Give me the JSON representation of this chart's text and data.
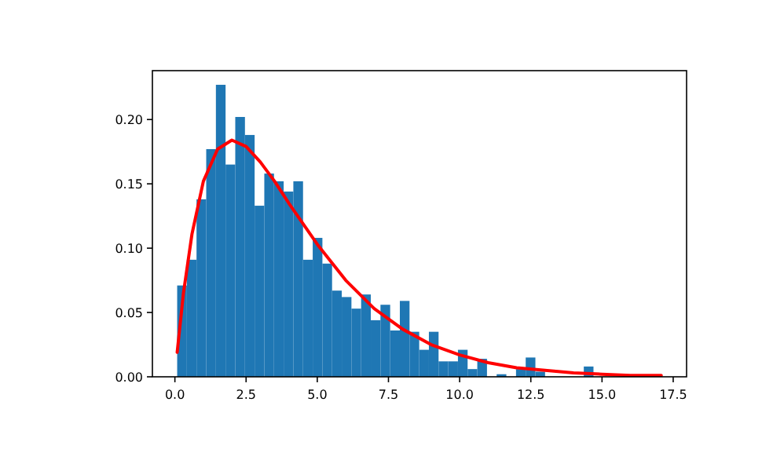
{
  "chart_data": {
    "type": "histogram",
    "bins": [
      0.08,
      0.42,
      0.76,
      1.1,
      1.44,
      1.78,
      2.12,
      2.46,
      2.8,
      3.14,
      3.48,
      3.82,
      4.16,
      4.5,
      4.84,
      5.18,
      5.52,
      5.86,
      6.2,
      6.54,
      6.88,
      7.22,
      7.56,
      7.9,
      8.24,
      8.58,
      8.92,
      9.26,
      9.6,
      9.94,
      10.28,
      10.62,
      10.96,
      11.3,
      11.64,
      11.98,
      12.32,
      12.66,
      13.0,
      13.34,
      13.68,
      14.02,
      14.36,
      14.7,
      15.04,
      15.38,
      15.72,
      16.06,
      16.4,
      16.74,
      17.08
    ],
    "values": [
      0.071,
      0.091,
      0.138,
      0.177,
      0.227,
      0.165,
      0.202,
      0.188,
      0.133,
      0.158,
      0.152,
      0.144,
      0.152,
      0.091,
      0.108,
      0.088,
      0.067,
      0.062,
      0.053,
      0.064,
      0.044,
      0.056,
      0.036,
      0.059,
      0.035,
      0.021,
      0.035,
      0.012,
      0.012,
      0.021,
      0.006,
      0.014,
      0,
      0.002,
      0,
      0.006,
      0.015,
      0.004,
      null,
      null,
      0,
      null,
      0.008,
      null,
      null,
      0,
      0,
      0,
      0,
      null
    ],
    "color": "#1f77b4",
    "series": [
      {
        "type": "line",
        "color": "#ff0000",
        "x": [
          0.08,
          0.3,
          0.6,
          1,
          1.5,
          2,
          2.5,
          3,
          3.5,
          4,
          5,
          6,
          7,
          8,
          9,
          10,
          11,
          12,
          13,
          14,
          15,
          16,
          17.08
        ],
        "values": [
          0.019,
          0.065,
          0.111,
          0.152,
          0.177,
          0.184,
          0.179,
          0.167,
          0.152,
          0.135,
          0.103,
          0.075,
          0.053,
          0.037,
          0.025,
          0.017,
          0.011,
          0.007,
          0.005,
          0.003,
          0.002,
          0.001,
          0.001
        ]
      }
    ],
    "xlim": [
      -0.79,
      17.97
    ],
    "xticks": [
      {
        "value": 0,
        "label": "0.0"
      },
      {
        "value": 2.5,
        "label": "2.5"
      },
      {
        "value": 5,
        "label": "5.0"
      },
      {
        "value": 7.5,
        "label": "7.5"
      },
      {
        "value": 10,
        "label": "10.0"
      },
      {
        "value": 12.5,
        "label": "12.5"
      },
      {
        "value": 15,
        "label": "15.0"
      },
      {
        "value": 17.5,
        "label": "17.5"
      }
    ],
    "ylim": [
      0,
      0.238
    ],
    "yticks": [
      {
        "value": 0,
        "label": "0.00"
      },
      {
        "value": 0.05,
        "label": "0.05"
      },
      {
        "value": 0.1,
        "label": "0.10"
      },
      {
        "value": 0.15,
        "label": "0.15"
      },
      {
        "value": 0.2,
        "label": "0.20"
      }
    ]
  }
}
